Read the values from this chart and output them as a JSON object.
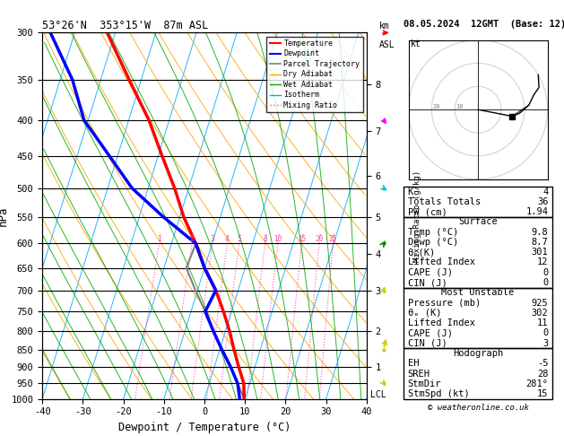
{
  "title_left": "53°26'N  353°15'W  87m ASL",
  "title_right": "08.05.2024  12GMT  (Base: 12)",
  "xlabel": "Dewpoint / Temperature (°C)",
  "ylabel_left": "hPa",
  "pressure_levels": [
    300,
    350,
    400,
    450,
    500,
    550,
    600,
    650,
    700,
    750,
    800,
    850,
    900,
    950,
    1000
  ],
  "temp_range": [
    -40,
    40
  ],
  "skew_factor": 0.35,
  "temp_profile": {
    "pressure": [
      1000,
      950,
      900,
      850,
      800,
      750,
      700,
      650,
      600,
      550,
      500,
      450,
      400,
      350,
      300
    ],
    "temperature": [
      9.8,
      8.5,
      6.0,
      3.5,
      1.0,
      -2.0,
      -5.5,
      -10.0,
      -14.0,
      -19.0,
      -23.5,
      -29.0,
      -35.0,
      -43.0,
      -52.0
    ]
  },
  "dewp_profile": {
    "pressure": [
      1000,
      950,
      900,
      850,
      800,
      750,
      700,
      650,
      600,
      550,
      500,
      450,
      400,
      350,
      300
    ],
    "temperature": [
      8.7,
      7.0,
      4.0,
      0.5,
      -3.0,
      -6.5,
      -5.5,
      -10.0,
      -14.0,
      -24.0,
      -34.0,
      -42.0,
      -51.0,
      -57.0,
      -66.0
    ]
  },
  "parcel_profile": {
    "pressure": [
      1000,
      950,
      900,
      850,
      800,
      750,
      700,
      650,
      600
    ],
    "temperature": [
      9.8,
      7.0,
      4.0,
      0.5,
      -3.0,
      -6.5,
      -10.5,
      -14.5,
      -14.0
    ]
  },
  "km_ticks": [
    1,
    2,
    3,
    4,
    5,
    6,
    7,
    8
  ],
  "km_pressures": [
    900,
    800,
    700,
    620,
    550,
    480,
    415,
    355
  ],
  "mixing_ratio_values": [
    1,
    2,
    3,
    4,
    5,
    8,
    10,
    15,
    20,
    25
  ],
  "mixing_ratio_labels": [
    "1",
    "2",
    "3",
    "4",
    "5",
    "8",
    "10",
    "15",
    "20",
    "25"
  ],
  "lcl_pressure": 985,
  "wind_barbs": {
    "pressures": [
      300,
      400,
      500,
      600,
      700,
      850,
      950
    ],
    "speeds": [
      35,
      20,
      15,
      8,
      10,
      15,
      15
    ],
    "directions": [
      270,
      280,
      275,
      260,
      250,
      240,
      280
    ],
    "colors": [
      "#ff0000",
      "#ff00ff",
      "#00cccc",
      "#008800",
      "#cccc00",
      "#cccc00",
      "#cccc00"
    ]
  },
  "K_index": 4,
  "Totals_Totals": 36,
  "PW": 1.94,
  "Surface_Temp": 9.8,
  "Surface_Dewp": 8.7,
  "Surface_theta_e": 301,
  "Surface_LI": 12,
  "Surface_CAPE": 0,
  "Surface_CIN": 0,
  "MU_Pressure": 925,
  "MU_theta_e": 302,
  "MU_LI": 11,
  "MU_CAPE": 0,
  "MU_CIN": 3,
  "EH": -5,
  "SREH": 28,
  "StmDir": 281,
  "StmSpd": 15,
  "colors": {
    "temperature": "#ff0000",
    "dewpoint": "#0000ff",
    "parcel": "#808080",
    "dry_adiabat": "#ffa500",
    "wet_adiabat": "#00aa00",
    "isotherm": "#00aaff",
    "mixing_ratio": "#ff44aa",
    "background": "#ffffff",
    "grid": "#000000"
  }
}
